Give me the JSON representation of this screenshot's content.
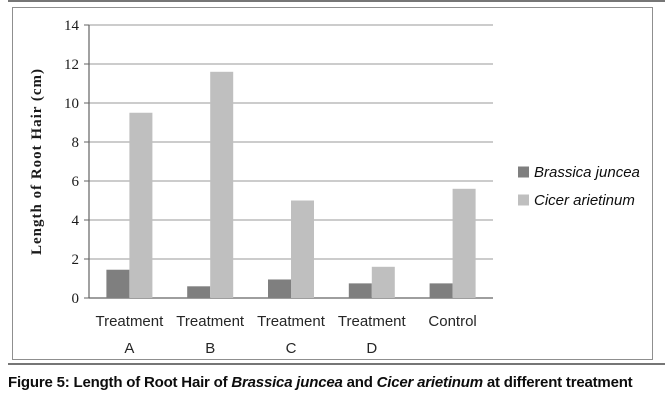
{
  "caption": {
    "prefix": "Figure 5: Length of Root Hair of ",
    "species1": "Brassica juncea",
    "middle": " and ",
    "species2": "Cicer arietinum",
    "suffix": " at different treatment"
  },
  "chart_data": {
    "type": "bar",
    "title": "",
    "xlabel": "",
    "ylabel": "Length of Root Hair (cm)",
    "ylim": [
      0,
      14
    ],
    "ytick_step": 2,
    "grid": true,
    "grid_color": "#9a9a9a",
    "axis_color": "#636363",
    "legend_position": "right",
    "categories": [
      "Treatment A",
      "Treatment B",
      "Treatment C",
      "Treatment D",
      "Control"
    ],
    "series": [
      {
        "name": "Brassica juncea",
        "color": "#7f7f7f",
        "values": [
          1.45,
          0.6,
          0.95,
          0.75,
          0.75
        ]
      },
      {
        "name": "Cicer arietinum",
        "color": "#bfbfbf",
        "values": [
          9.5,
          11.6,
          5.0,
          1.6,
          5.6
        ]
      }
    ]
  }
}
